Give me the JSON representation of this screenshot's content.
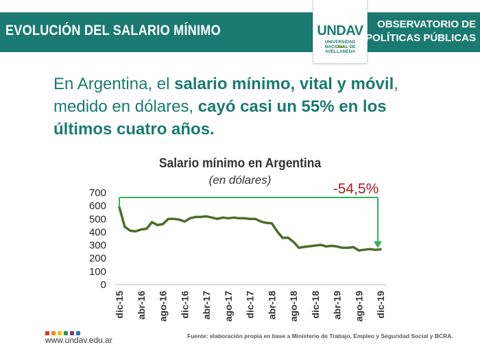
{
  "header": {
    "title": "EVOLUCIÓN DEL SALARIO MÍNIMO",
    "org_line1": "OBSERVATORIO DE",
    "org_line2": "POLÍTICAS PÚBLICAS",
    "logo_text": "UNDAV",
    "logo_sub1": "UNIVERSIDAD",
    "logo_sub2": "NACIONAL DE",
    "logo_sub3": "AVELLANEDA"
  },
  "headline": {
    "p1": "En Argentina, el ",
    "b1": "salario mínimo, vital y móvil",
    "p2": ", medido en dólares, ",
    "b2": "cayó casi un 55% en los últimos cuatro años."
  },
  "chart_data": {
    "type": "line",
    "title": "Salario mínimo en Argentina",
    "subtitle": "(en dólares)",
    "annotation": "-54,5%",
    "ylim": [
      0,
      700
    ],
    "yticks": [
      0,
      100,
      200,
      300,
      400,
      500,
      600,
      700
    ],
    "xtick_labels": [
      "dic-15",
      "abr-16",
      "ago-16",
      "dic-16",
      "abr-17",
      "ago-17",
      "dic-17",
      "abr-18",
      "ago-18",
      "dic-18",
      "abr-19",
      "ago-19",
      "dic-19"
    ],
    "xtick_indices": [
      0,
      4,
      8,
      12,
      16,
      20,
      24,
      28,
      32,
      36,
      40,
      44,
      48
    ],
    "series": [
      {
        "name": "Salario mínimo (USD)",
        "values": [
          585,
          435,
          405,
          400,
          415,
          420,
          470,
          448,
          455,
          495,
          495,
          490,
          475,
          500,
          510,
          510,
          515,
          505,
          495,
          505,
          500,
          505,
          500,
          500,
          495,
          495,
          475,
          465,
          462,
          400,
          350,
          352,
          320,
          275,
          282,
          287,
          292,
          297,
          285,
          290,
          285,
          275,
          275,
          280,
          255,
          260,
          265,
          260,
          262
        ]
      }
    ],
    "colors": {
      "line": "#4e6b2a",
      "annotation": "#2fb35a",
      "annotation_text": "#a51d1d"
    }
  },
  "footer": {
    "url": "www.undav.edu.ar",
    "source": "Fuente: elaboración propia en base a Ministerio de Trabajo, Empleo y Seguridad Social y BCRA.",
    "dot_colors": [
      "#d33b2c",
      "#e98a1f",
      "#f2c300",
      "#2f9a4b",
      "#8e3b8e",
      "#2a7bbd"
    ]
  }
}
